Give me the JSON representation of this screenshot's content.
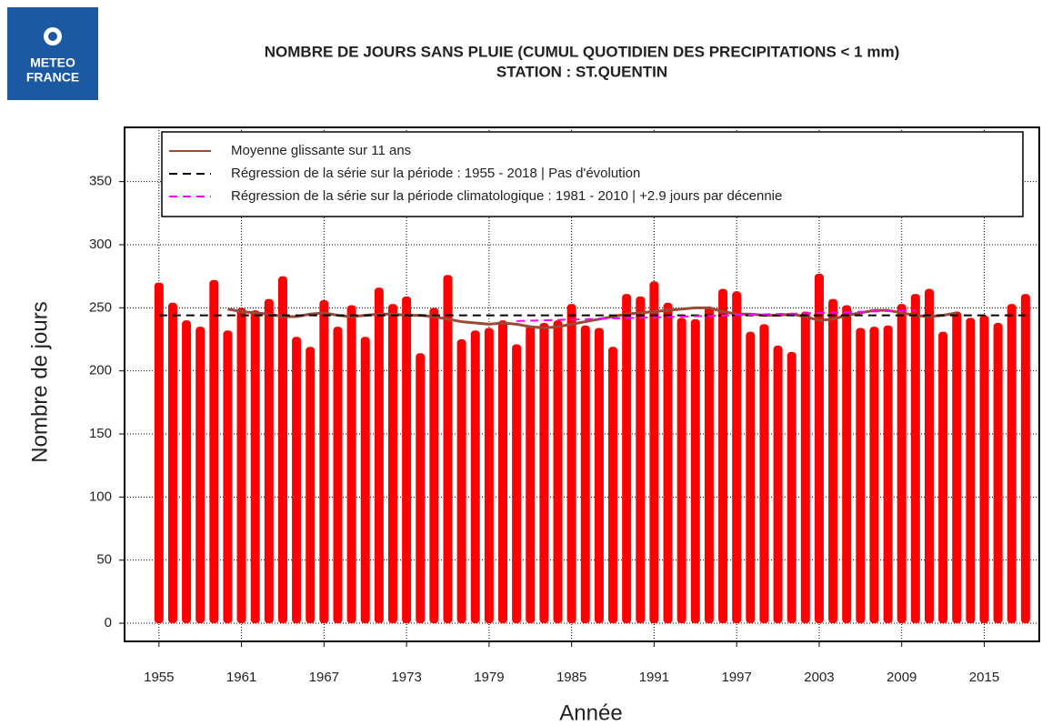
{
  "logo": {
    "lines": [
      "METEO",
      "FRANCE"
    ]
  },
  "chart_data": {
    "type": "bar",
    "title": "NOMBRE DE JOURS SANS PLUIE (CUMUL QUOTIDIEN DES PRECIPITATIONS < 1 mm)",
    "subtitle": "STATION : ST.QUENTIN",
    "x_label": "Année",
    "y_label": "Nombre de jours",
    "x": [
      1955,
      1956,
      1957,
      1958,
      1959,
      1960,
      1961,
      1962,
      1963,
      1964,
      1965,
      1966,
      1967,
      1968,
      1969,
      1970,
      1971,
      1972,
      1973,
      1974,
      1975,
      1976,
      1977,
      1978,
      1979,
      1980,
      1981,
      1982,
      1983,
      1984,
      1985,
      1986,
      1987,
      1988,
      1989,
      1990,
      1991,
      1992,
      1993,
      1994,
      1995,
      1996,
      1997,
      1998,
      1999,
      2000,
      2001,
      2002,
      2003,
      2004,
      2005,
      2006,
      2007,
      2008,
      2009,
      2010,
      2011,
      2012,
      2013,
      2014,
      2015,
      2016,
      2017,
      2018
    ],
    "values": [
      270,
      254,
      240,
      235,
      272,
      232,
      250,
      248,
      257,
      275,
      227,
      219,
      256,
      235,
      252,
      227,
      266,
      253,
      259,
      214,
      250,
      276,
      225,
      232,
      234,
      240,
      221,
      236,
      238,
      240,
      253,
      236,
      234,
      219,
      261,
      259,
      271,
      254,
      242,
      241,
      251,
      265,
      263,
      231,
      237,
      220,
      215,
      247,
      277,
      257,
      252,
      234,
      235,
      236,
      253,
      261,
      265,
      231,
      247,
      242,
      244,
      238,
      253,
      261
    ],
    "color": "#ff0000",
    "series": [
      {
        "name": "Moyenne glissante sur 11 ans",
        "color": "#9a4a36",
        "dashed": false,
        "x": [
          1960,
          1961,
          1962,
          1963,
          1964,
          1965,
          1966,
          1967,
          1968,
          1969,
          1970,
          1971,
          1972,
          1973,
          1974,
          1975,
          1976,
          1977,
          1978,
          1979,
          1980,
          1981,
          1982,
          1983,
          1984,
          1985,
          1986,
          1987,
          1988,
          1989,
          1990,
          1991,
          1992,
          1993,
          1994,
          1995,
          1996,
          1997,
          1998,
          1999,
          2000,
          2001,
          2002,
          2003,
          2004,
          2005,
          2006,
          2007,
          2008,
          2009,
          2010,
          2011,
          2012,
          2013
        ],
        "values": [
          249,
          247,
          246,
          245,
          243,
          243,
          245,
          246,
          244,
          243,
          244,
          245,
          245,
          244,
          244,
          243,
          241,
          239,
          238,
          237,
          238,
          237,
          235,
          234,
          235,
          237,
          239,
          241,
          243,
          245,
          246,
          247,
          248,
          249,
          250,
          250,
          247,
          245,
          245,
          244,
          244,
          245,
          243,
          240,
          241,
          244,
          246,
          248,
          248,
          246,
          244,
          243,
          244,
          246
        ]
      },
      {
        "name": "Régression de la série sur la période : 1955 - 2018 | Pas d'évolution",
        "color": "#000000",
        "dashed": true,
        "x": [
          1955,
          2018
        ],
        "values": [
          244,
          244
        ]
      },
      {
        "name": "Régression de la série sur la période climatologique : 1981 - 2010 | +2.9 jours par décennie",
        "color": "#ff00ff",
        "dashed": true,
        "x": [
          1981,
          2010
        ],
        "values": [
          239.5,
          248
        ]
      }
    ],
    "xlim": [
      1952.5,
      2019
    ],
    "xticks": [
      1955,
      1961,
      1967,
      1973,
      1979,
      1985,
      1991,
      1997,
      2003,
      2009,
      2015
    ],
    "ylim": [
      -14.4,
      393
    ],
    "yticks": [
      0,
      50,
      100,
      150,
      200,
      250,
      300,
      350
    ],
    "grid": true,
    "legend": "top"
  }
}
